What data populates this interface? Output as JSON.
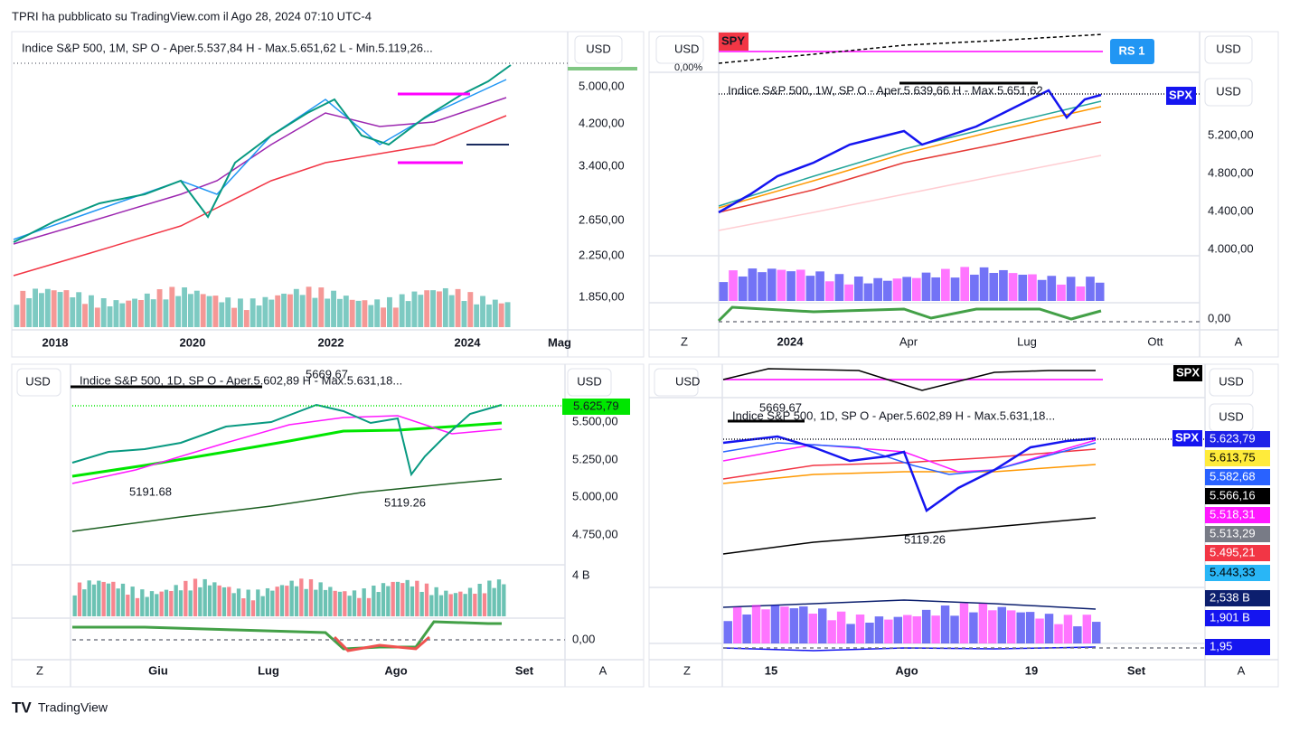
{
  "header": "TPRI ha pubblicato su TradingView.com il Ago 28, 2024 07:10 UTC-4",
  "footer": "TradingView",
  "panels": [
    {
      "legend": "Indice S&P 500, 1M, SP  O - Aper.5.537,84  H - Max.5.651,62  L - Min.5.119,26...",
      "currency": "USD",
      "price_labels": [
        "5.000,00",
        "4.200,00",
        "3.400,00",
        "2.650,00",
        "2.250,00",
        "1.850,00"
      ],
      "time_labels": [
        "2018",
        "2020",
        "2022",
        "2024",
        "Mag"
      ]
    },
    {
      "symbol": "SPY",
      "badge": "RS 1",
      "currency": "USD",
      "currency_right": "USD",
      "currency_right2": "USD",
      "percent": "0,00%",
      "legend": "Indice S&P 500, 1W, SP  O - Aper.5.639,66  H - Max.5.651,62",
      "tag": "SPX",
      "price_labels": [
        "5.200,00",
        "4.800,00",
        "4.400,00",
        "4.000,00",
        "0,00"
      ],
      "time_labels": [
        "Z",
        "2024",
        "Apr",
        "Lug",
        "Ott",
        "A"
      ]
    },
    {
      "currency": "USD",
      "currency_right": "USD",
      "legend": "Indice S&P 500, 1D, SP  O - Aper.5.602,89  H - Max.5.631,18...",
      "annotations": [
        "5669.67",
        "5191.68",
        "5119.26"
      ],
      "last_price": "5.625,79",
      "price_labels": [
        "5.500,00",
        "5.250,00",
        "5.000,00",
        "4.750,00",
        "4 B",
        "0,00"
      ],
      "time_labels": [
        "Z",
        "Giu",
        "Lug",
        "Ago",
        "Set",
        "A"
      ]
    },
    {
      "tag": "SPX",
      "tag2": "SPX",
      "currency": "USD",
      "currency_right": "USD",
      "currency_right2": "USD",
      "legend": "Indice S&P 500, 1D, SP  O - Aper.5.602,89  H - Max.5.631,18...",
      "annotations": [
        "5669.67",
        "5119.26"
      ],
      "price_tags": [
        {
          "label": "5.623,79",
          "color": "#1e22e8"
        },
        {
          "label": "5.613,75",
          "color": "#ffeb3b"
        },
        {
          "label": "5.582,68",
          "color": "#2962ff"
        },
        {
          "label": "5.566,16",
          "color": "#000000"
        },
        {
          "label": "5.518,31",
          "color": "#ff19ff"
        },
        {
          "label": "5.513,29",
          "color": "#787b86"
        },
        {
          "label": "5.495,21",
          "color": "#f23645"
        },
        {
          "label": "5.443,33",
          "color": "#29b6f6"
        },
        {
          "label": "2,538 B",
          "color": "#0c1f6e"
        },
        {
          "label": "1,901 B",
          "color": "#1515f0"
        },
        {
          "label": "1,95",
          "color": "#1515f0"
        }
      ],
      "time_labels": [
        "Z",
        "15",
        "Ago",
        "19",
        "Set",
        "A"
      ]
    }
  ]
}
